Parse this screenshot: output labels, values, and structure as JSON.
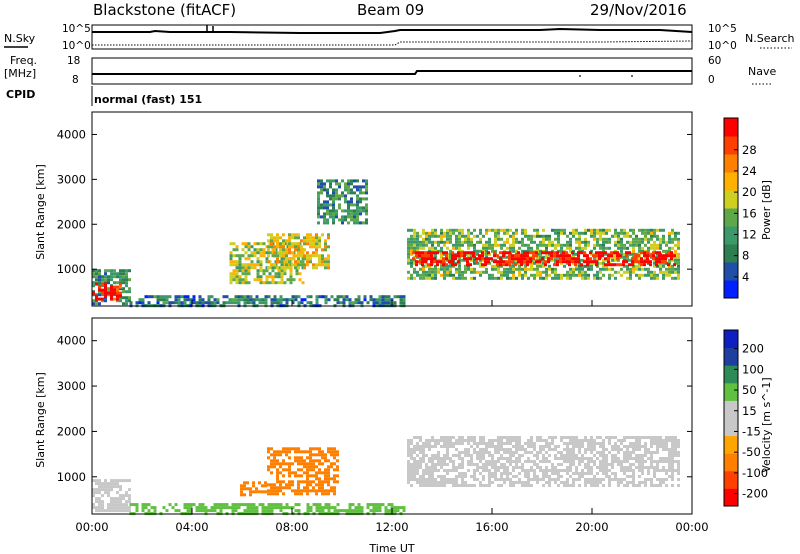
{
  "header": {
    "station": "Blackstone (fitACF)",
    "beam": "Beam 09",
    "date": "29/Nov/2016"
  },
  "noise_panel": {
    "left_label": "N.Sky",
    "right_label": "N.Search",
    "top_tick": "10^5",
    "bottom_tick": "10^0"
  },
  "freq_panel": {
    "left_label_1": "Freq.",
    "left_label_2": "[MHz]",
    "left_top_tick": "18",
    "left_bottom_tick": "8",
    "right_label": "Nave",
    "right_top_tick": "60",
    "right_bottom_tick": "0"
  },
  "cpid_panel": {
    "label": "CPID",
    "mode": "normal (fast) 151"
  },
  "colors": {
    "power": [
      "#0020ff",
      "#1f4fa8",
      "#2d7f52",
      "#3c9a6a",
      "#5fa84a",
      "#cfcf20",
      "#ffb000",
      "#ff8000",
      "#ff4000",
      "#ff0000"
    ],
    "velocity": [
      "#ff0000",
      "#ff4000",
      "#ff8000",
      "#ffa500",
      "#c8c8c8",
      "#c8c8c8",
      "#60c040",
      "#2e8b57",
      "#1f3fa0",
      "#1020c0"
    ]
  },
  "chart_data": [
    {
      "type": "heatmap",
      "name_hint": "power",
      "ylabel": "Slant Range [km]",
      "xlabel": "Time UT",
      "yticks": [
        "1000",
        "2000",
        "3000",
        "4000"
      ],
      "ylim": [
        180,
        4500
      ],
      "xlim": [
        0,
        24
      ],
      "colorbar_label": "Power [dB]",
      "colorbar_ticks": [
        "4",
        "8",
        "12",
        "16",
        "20",
        "24",
        "28"
      ],
      "regions": [
        {
          "t0": 0.0,
          "t1": 1.5,
          "r0": 250,
          "r1": 1000,
          "level": 8
        },
        {
          "t0": 0.0,
          "t1": 1.2,
          "r0": 300,
          "r1": 700,
          "level": 26
        },
        {
          "t0": 1.5,
          "t1": 12.5,
          "r0": 180,
          "r1": 420,
          "level": 6
        },
        {
          "t0": 5.5,
          "t1": 8.5,
          "r0": 700,
          "r1": 1600,
          "level": 14
        },
        {
          "t0": 7.0,
          "t1": 9.5,
          "r0": 1000,
          "r1": 1800,
          "level": 16
        },
        {
          "t0": 9.0,
          "t1": 11.0,
          "r0": 2000,
          "r1": 3000,
          "level": 8
        },
        {
          "t0": 12.6,
          "t1": 23.5,
          "r0": 800,
          "r1": 1900,
          "level": 12
        },
        {
          "t0": 12.8,
          "t1": 23.3,
          "r0": 1100,
          "r1": 1400,
          "level": 28
        }
      ]
    },
    {
      "type": "heatmap",
      "name_hint": "velocity",
      "ylabel": "Slant Range [km]",
      "xlabel": "Time UT",
      "xticks": [
        "00:00",
        "04:00",
        "08:00",
        "12:00",
        "16:00",
        "20:00",
        "00:00"
      ],
      "yticks": [
        "1000",
        "2000",
        "3000",
        "4000"
      ],
      "ylim": [
        180,
        4500
      ],
      "xlim": [
        0,
        24
      ],
      "colorbar_label": "Velocity [m s^-1]",
      "colorbar_ticks": [
        "200",
        "100",
        "50",
        "15",
        "-15",
        "-50",
        "-100",
        "-200"
      ],
      "regions": [
        {
          "t0": 0.0,
          "t1": 1.5,
          "r0": 250,
          "r1": 950,
          "velocity": 0
        },
        {
          "t0": 1.5,
          "t1": 12.5,
          "r0": 180,
          "r1": 420,
          "velocity": 30
        },
        {
          "t0": 5.8,
          "t1": 7.0,
          "r0": 600,
          "r1": 900,
          "velocity": -50
        },
        {
          "t0": 7.0,
          "t1": 9.8,
          "r0": 600,
          "r1": 1650,
          "velocity": -50
        },
        {
          "t0": 12.6,
          "t1": 23.5,
          "r0": 800,
          "r1": 1900,
          "velocity": 0
        }
      ]
    }
  ]
}
